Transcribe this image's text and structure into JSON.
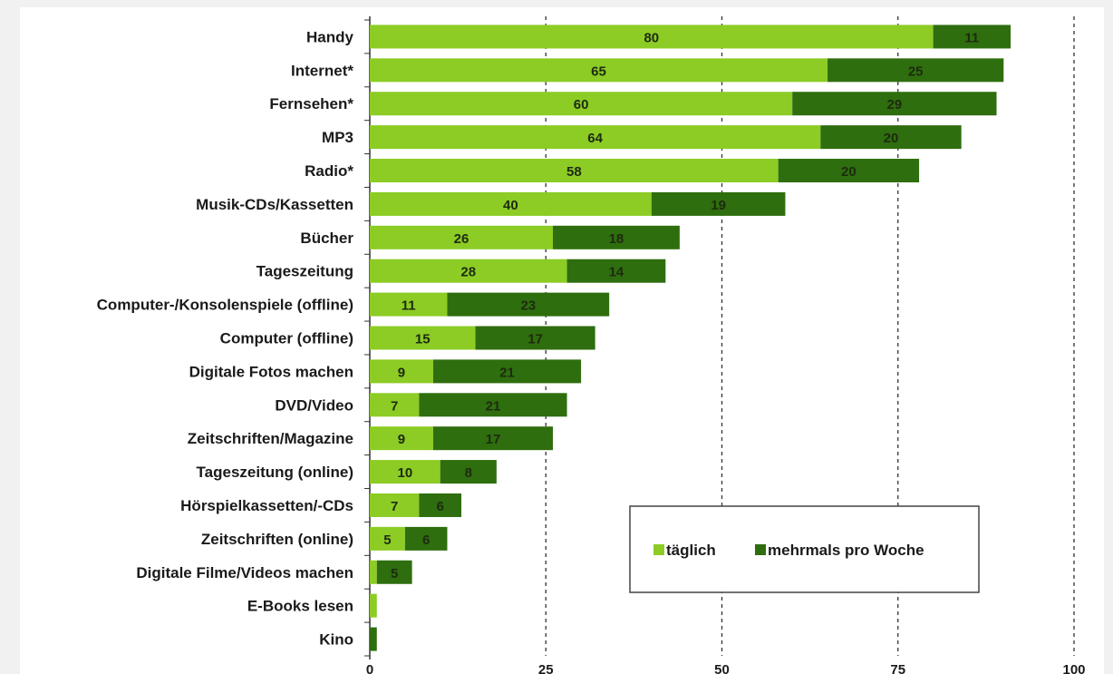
{
  "chart_data": {
    "type": "bar",
    "orientation": "horizontal",
    "stacked": true,
    "categories": [
      "Handy",
      "Internet*",
      "Fernsehen*",
      "MP3",
      "Radio*",
      "Musik-CDs/Kassetten",
      "Bücher",
      "Tageszeitung",
      "Computer-/Konsolenspiele (offline)",
      "Computer (offline)",
      "Digitale Fotos machen",
      "DVD/Video",
      "Zeitschriften/Magazine",
      "Tageszeitung (online)",
      "Hörspielkassetten/-CDs",
      "Zeitschriften (online)",
      "Digitale Filme/Videos machen",
      "E-Books lesen",
      "Kino"
    ],
    "series": [
      {
        "name": "täglich",
        "color": "#8ccc24",
        "values": [
          80,
          65,
          60,
          64,
          58,
          40,
          26,
          28,
          11,
          15,
          9,
          7,
          9,
          10,
          7,
          5,
          1,
          1,
          0
        ],
        "labels": [
          "80",
          "65",
          "60",
          "64",
          "58",
          "40",
          "26",
          "28",
          "11",
          "15",
          "9",
          "7",
          "9",
          "10",
          "7",
          "5",
          "",
          "",
          ""
        ]
      },
      {
        "name": "mehrmals pro Woche",
        "color": "#2e6e0e",
        "values": [
          11,
          25,
          29,
          20,
          20,
          19,
          18,
          14,
          23,
          17,
          21,
          21,
          17,
          8,
          6,
          6,
          5,
          0,
          1
        ],
        "labels": [
          "11",
          "25",
          "29",
          "20",
          "20",
          "19",
          "18",
          "14",
          "23",
          "17",
          "21",
          "21",
          "17",
          "8",
          "6",
          "6",
          "5",
          "",
          ""
        ]
      }
    ],
    "xlim": [
      0,
      100
    ],
    "xticks": [
      "0",
      "25",
      "50",
      "75",
      "100"
    ],
    "grid": "vertical dashed",
    "legend_position": "bottom-right"
  }
}
